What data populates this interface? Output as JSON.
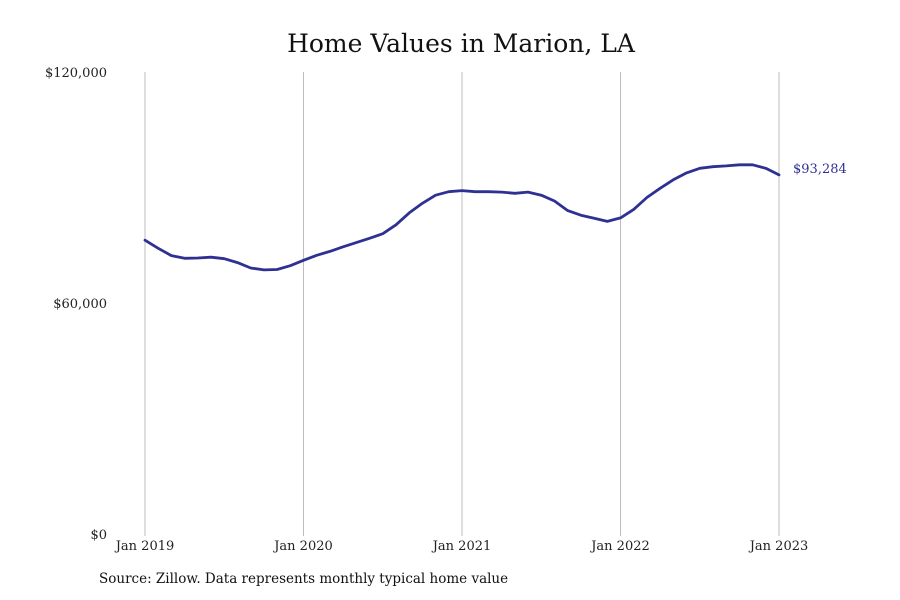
{
  "chart_data": {
    "type": "line",
    "title": "Home Values in Marion, LA",
    "xlabel": "",
    "ylabel": "",
    "ylim": [
      0,
      120000
    ],
    "xlim": [
      "2019-01",
      "2023-01"
    ],
    "grid": "vertical at each January",
    "y_ticks": [
      {
        "value": 0,
        "label": "$0"
      },
      {
        "value": 60000,
        "label": "$60,000"
      },
      {
        "value": 120000,
        "label": "$120,000"
      }
    ],
    "x_ticks": [
      {
        "value": "2019-01",
        "label": "Jan 2019"
      },
      {
        "value": "2020-01",
        "label": "Jan 2020"
      },
      {
        "value": "2021-01",
        "label": "Jan 2021"
      },
      {
        "value": "2022-01",
        "label": "Jan 2022"
      },
      {
        "value": "2023-01",
        "label": "Jan 2023"
      }
    ],
    "series": [
      {
        "color": "#2e3192",
        "points": [
          [
            "2019-01",
            76300
          ],
          [
            "2019-02",
            74200
          ],
          [
            "2019-03",
            72300
          ],
          [
            "2019-04",
            71600
          ],
          [
            "2019-05",
            71700
          ],
          [
            "2019-06",
            71900
          ],
          [
            "2019-07",
            71500
          ],
          [
            "2019-08",
            70500
          ],
          [
            "2019-09",
            69100
          ],
          [
            "2019-10",
            68600
          ],
          [
            "2019-11",
            68700
          ],
          [
            "2019-12",
            69700
          ],
          [
            "2020-01",
            71100
          ],
          [
            "2020-02",
            72400
          ],
          [
            "2020-03",
            73400
          ],
          [
            "2020-04",
            74600
          ],
          [
            "2020-05",
            75700
          ],
          [
            "2020-06",
            76800
          ],
          [
            "2020-07",
            78000
          ],
          [
            "2020-08",
            80300
          ],
          [
            "2020-09",
            83400
          ],
          [
            "2020-10",
            85900
          ],
          [
            "2020-11",
            88000
          ],
          [
            "2020-12",
            88900
          ],
          [
            "2021-01",
            89200
          ],
          [
            "2021-02",
            88900
          ],
          [
            "2021-03",
            88900
          ],
          [
            "2021-04",
            88800
          ],
          [
            "2021-05",
            88500
          ],
          [
            "2021-06",
            88800
          ],
          [
            "2021-07",
            88000
          ],
          [
            "2021-08",
            86500
          ],
          [
            "2021-09",
            84000
          ],
          [
            "2021-10",
            82800
          ],
          [
            "2021-11",
            82000
          ],
          [
            "2021-12",
            81200
          ],
          [
            "2022-01",
            82100
          ],
          [
            "2022-02",
            84300
          ],
          [
            "2022-03",
            87400
          ],
          [
            "2022-04",
            89800
          ],
          [
            "2022-05",
            92000
          ],
          [
            "2022-06",
            93800
          ],
          [
            "2022-07",
            95000
          ],
          [
            "2022-08",
            95400
          ],
          [
            "2022-09",
            95600
          ],
          [
            "2022-10",
            95900
          ],
          [
            "2022-11",
            95900
          ],
          [
            "2022-12",
            95000
          ],
          [
            "2023-01",
            93284
          ]
        ],
        "end_label": "$93,284"
      }
    ]
  },
  "source": "Source: Zillow. Data represents monthly typical home value"
}
